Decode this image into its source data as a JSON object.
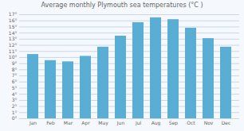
{
  "chart_data": {
    "type": "bar",
    "title": "Average monthly Plymouth sea temperatures (°C )",
    "categories": [
      "Jan",
      "Feb",
      "Mar",
      "Apr",
      "May",
      "Jun",
      "Jul",
      "Aug",
      "Sep",
      "Oct",
      "Nov",
      "Dec"
    ],
    "values": [
      10.5,
      9.5,
      9.3,
      10.2,
      11.7,
      13.5,
      15.7,
      16.5,
      16.2,
      14.8,
      13.1,
      11.7
    ],
    "color": "#5aaed4",
    "ylim": [
      0,
      17
    ],
    "yticks": [
      {
        "value": 0,
        "label": "0°"
      },
      {
        "value": 1,
        "label": "1°"
      },
      {
        "value": 2,
        "label": "2°"
      },
      {
        "value": 3,
        "label": "3°"
      },
      {
        "value": 4,
        "label": "4°"
      },
      {
        "value": 5,
        "label": "5°"
      },
      {
        "value": 6,
        "label": "6°"
      },
      {
        "value": 7,
        "label": "7°"
      },
      {
        "value": 8,
        "label": "8°"
      },
      {
        "value": 9,
        "label": "9°"
      },
      {
        "value": 10,
        "label": "10°"
      },
      {
        "value": 11,
        "label": "11°"
      },
      {
        "value": 12,
        "label": "12°"
      },
      {
        "value": 13,
        "label": "13°"
      },
      {
        "value": 14,
        "label": "14°"
      },
      {
        "value": 15,
        "label": "15°"
      },
      {
        "value": 16,
        "label": "16°"
      },
      {
        "value": 17,
        "label": "17°"
      }
    ],
    "grid": true
  }
}
